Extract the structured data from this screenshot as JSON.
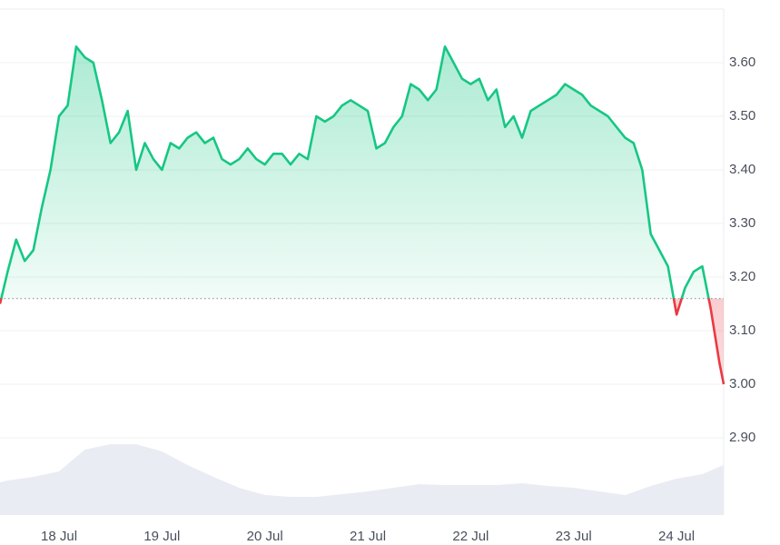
{
  "chart_data": {
    "type": "line",
    "baseline": 3.16,
    "baseline_color": "#9aa0aa",
    "grid": true,
    "xlim": [
      -13.77,
      155
    ],
    "ylim": [
      2.76,
      3.7
    ],
    "y2lim": [
      0,
      100
    ],
    "xticks": [
      {
        "value": 0,
        "label": "18 Jul"
      },
      {
        "value": 24,
        "label": "19 Jul"
      },
      {
        "value": 48,
        "label": "20 Jul"
      },
      {
        "value": 72,
        "label": "21 Jul"
      },
      {
        "value": 96,
        "label": "22 Jul"
      },
      {
        "value": 120,
        "label": "23 Jul"
      },
      {
        "value": 144,
        "label": "24 Jul"
      }
    ],
    "yticks": [
      {
        "value": 2.9,
        "label": "2.90"
      },
      {
        "value": 3.0,
        "label": "3.00"
      },
      {
        "value": 3.1,
        "label": "3.10"
      },
      {
        "value": 3.2,
        "label": "3.20"
      },
      {
        "value": 3.3,
        "label": "3.30"
      },
      {
        "value": 3.4,
        "label": "3.40"
      },
      {
        "value": 3.5,
        "label": "3.50"
      },
      {
        "value": 3.6,
        "label": "3.60"
      }
    ],
    "series": [
      {
        "color": "#16c784",
        "below_color": "#ea3943",
        "x": [
          -13.77,
          -12,
          -10,
          -8,
          -6,
          -4,
          -2,
          0,
          2,
          4,
          6,
          8,
          10,
          12,
          14,
          16,
          18,
          20,
          22,
          24,
          26,
          28,
          30,
          32,
          34,
          36,
          38,
          40,
          42,
          44,
          46,
          48,
          50,
          52,
          54,
          56,
          58,
          60,
          62,
          64,
          66,
          68,
          70,
          72,
          74,
          76,
          78,
          80,
          82,
          84,
          86,
          88,
          90,
          92,
          94,
          96,
          98,
          100,
          102,
          104,
          106,
          108,
          110,
          112,
          114,
          116,
          118,
          120,
          122,
          124,
          126,
          128,
          130,
          132,
          134,
          136,
          138,
          140,
          142,
          144,
          146,
          148,
          150,
          152,
          154,
          155
        ],
        "values": [
          3.15,
          3.21,
          3.27,
          3.23,
          3.25,
          3.33,
          3.4,
          3.5,
          3.52,
          3.63,
          3.61,
          3.6,
          3.53,
          3.45,
          3.47,
          3.51,
          3.4,
          3.45,
          3.42,
          3.4,
          3.45,
          3.44,
          3.46,
          3.47,
          3.45,
          3.46,
          3.42,
          3.41,
          3.42,
          3.44,
          3.42,
          3.41,
          3.43,
          3.43,
          3.41,
          3.43,
          3.42,
          3.5,
          3.49,
          3.5,
          3.52,
          3.53,
          3.52,
          3.51,
          3.44,
          3.45,
          3.48,
          3.5,
          3.56,
          3.55,
          3.53,
          3.55,
          3.63,
          3.6,
          3.57,
          3.56,
          3.57,
          3.53,
          3.55,
          3.48,
          3.5,
          3.46,
          3.51,
          3.52,
          3.53,
          3.54,
          3.56,
          3.55,
          3.54,
          3.52,
          3.51,
          3.5,
          3.48,
          3.46,
          3.45,
          3.4,
          3.28,
          3.25,
          3.22,
          3.13,
          3.18,
          3.21,
          3.22,
          3.14,
          3.04,
          3.0
        ]
      },
      {
        "color": "#e9ecf2",
        "axis": "y2",
        "x": [
          -13.77,
          -12,
          -6,
          0,
          6,
          12,
          18,
          24,
          30,
          36,
          42,
          48,
          54,
          60,
          66,
          72,
          78,
          84,
          90,
          96,
          102,
          108,
          114,
          120,
          126,
          132,
          138,
          144,
          150,
          155
        ],
        "values": [
          36,
          38,
          42,
          48,
          72,
          78,
          78,
          70,
          55,
          42,
          30,
          22,
          20,
          20,
          23,
          26,
          30,
          34,
          33,
          33,
          33,
          35,
          32,
          30,
          26,
          22,
          32,
          40,
          45,
          55
        ]
      }
    ]
  }
}
